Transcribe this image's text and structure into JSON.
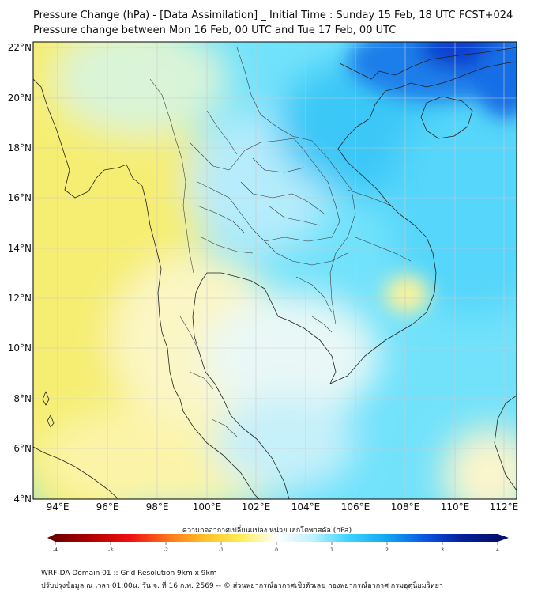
{
  "title": {
    "line1": "Pressure Change (hPa) - [Data Assimilation] _ Initial Time : Sunday 15 Feb, 18 UTC FCST+024",
    "line2": "Pressure change between Mon 16 Feb, 00 UTC and Tue 17 Feb, 00 UTC"
  },
  "map": {
    "lat_labels": [
      "22°N",
      "20°N",
      "18°N",
      "16°N",
      "14°N",
      "12°N",
      "10°N",
      "8°N",
      "6°N",
      "4°N"
    ],
    "lon_labels": [
      "94°E",
      "96°E",
      "98°E",
      "100°E",
      "102°E",
      "104°E",
      "106°E",
      "108°E",
      "110°E",
      "112°E"
    ],
    "lat_range": [
      4,
      22
    ],
    "lon_range": [
      93,
      112.5
    ],
    "grid": true
  },
  "colorbar": {
    "title": "ความกดอากาศเปลี่ยนแปลง หน่วย เฮกโตพาสคัล (hPa)",
    "ticks": [
      "-4",
      "-3",
      "-2",
      "-1",
      "0",
      "1",
      "2",
      "3",
      "4"
    ],
    "range": [
      -4,
      4
    ],
    "colors": [
      "#6e0000",
      "#b00000",
      "#f01010",
      "#ff7a1a",
      "#ffc22a",
      "#ffee55",
      "#ffffff",
      "#bff2ff",
      "#3fd4ff",
      "#12a6f2",
      "#0a52e0",
      "#05209a",
      "#03106e"
    ]
  },
  "footer": {
    "line1": "WRF-DA Domain 01 :: Grid Resolution 9km x 9km",
    "line2": "ปรับปรุงข้อมูล ณ เวลา 01:00น. วัน จ. ที่ 16 ก.พ. 2569 -- © ส่วนพยากรณ์อากาศเชิงตัวเลข กองพยากรณ์อากาศ กรมอุตุนิยมวิทยา"
  }
}
